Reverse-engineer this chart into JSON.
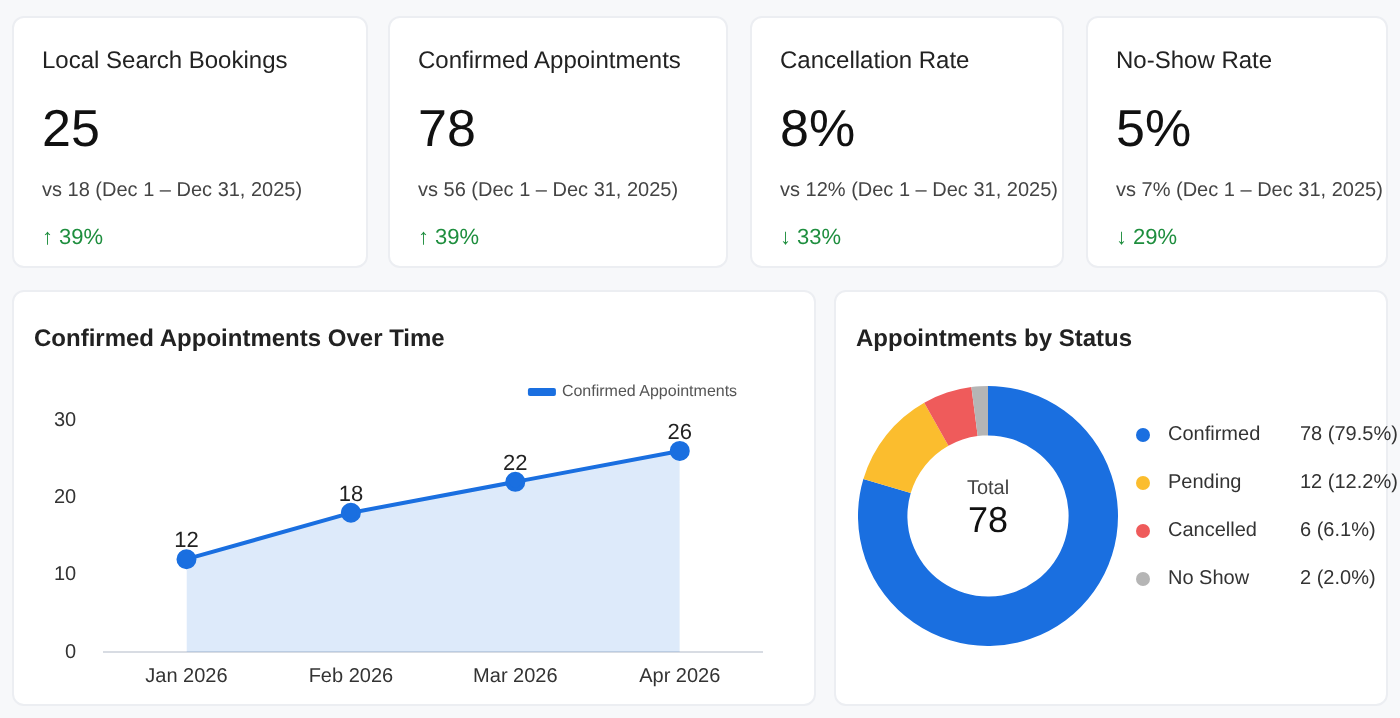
{
  "chart_data": [
    {
      "type": "other",
      "title": "Local Search Bookings",
      "annotations": [
        "25",
        "vs 18 (Dec 1 – Dec 31, 2025)",
        "↑ 39%"
      ]
    },
    {
      "type": "other",
      "title": "Confirmed Appointments",
      "annotations": [
        "78",
        "vs 56 (Dec 1 – Dec 31, 2025)",
        "↑ 39%"
      ]
    },
    {
      "type": "other",
      "title": "Cancellation Rate",
      "annotations": [
        "8%",
        "vs 12% (Dec 1 – Dec 31, 2025)",
        "↓ 33%"
      ]
    },
    {
      "type": "other",
      "title": "No-Show Rate",
      "annotations": [
        "5%",
        "vs 7% (Dec 1 – Dec 31, 2025)",
        "↓ 29%"
      ]
    },
    {
      "type": "area",
      "title": "Confirmed Appointments Over Time",
      "categories": [
        "Jan 2026",
        "Feb 2026",
        "Mar 2026",
        "Apr 2026"
      ],
      "series": [
        {
          "name": "Confirmed Appointments",
          "color": "#1a6fe0",
          "values": [
            12,
            18,
            22,
            26
          ]
        }
      ],
      "ylim": [
        0,
        30
      ],
      "yticks": [
        0,
        10,
        20,
        30
      ],
      "grid": false,
      "legend": "top right",
      "marker": "circle",
      "data_labels": true
    },
    {
      "type": "donut",
      "title": "Appointments by Status",
      "categories": [
        "Confirmed",
        "Pending",
        "Cancelled",
        "No Show"
      ],
      "values": [
        78,
        12,
        6,
        2
      ],
      "colors": [
        "#1a6fe0",
        "#fbbd2e",
        "#ef5b5b",
        "#b5b5b5"
      ],
      "value_labels": [
        "78 (79.5%)",
        "12 (12.2%)",
        "6 (6.1%)",
        "2 (2.0%)"
      ],
      "annotations": [
        "Total",
        "78"
      ],
      "legend": "right"
    }
  ]
}
